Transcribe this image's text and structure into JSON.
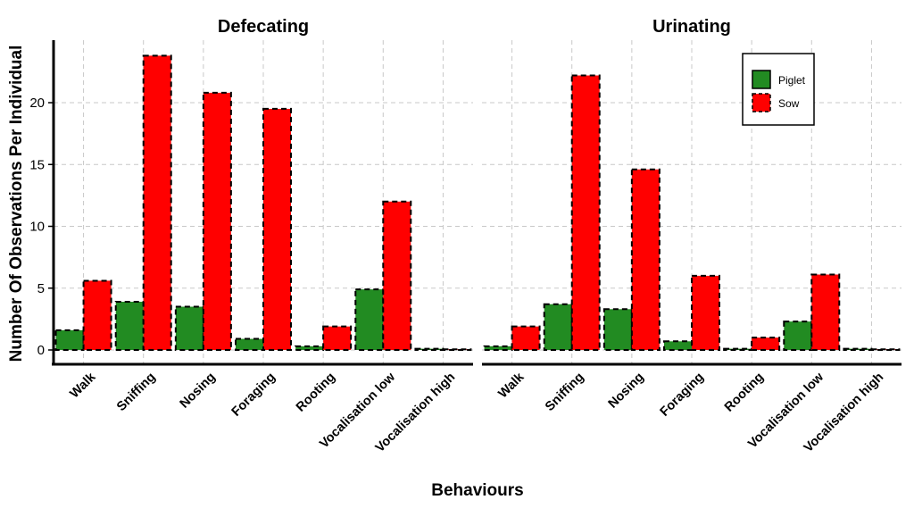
{
  "chart_data": {
    "type": "bar",
    "ylabel": "Number Of Observations Per Individual",
    "xlabel": "Behaviours",
    "ylim": [
      -1.2,
      25
    ],
    "yticks": [
      0,
      5,
      10,
      15,
      20
    ],
    "grid": true,
    "legend_position": "top-right",
    "categories": [
      "Walk",
      "Sniffing",
      "Nosing",
      "Foraging",
      "Rooting",
      "Vocalisation low",
      "Vocalisation high"
    ],
    "series_colors": {
      "Piglet": "#228B22",
      "Sow": "#FF0000"
    },
    "panels": [
      {
        "title": "Defecating",
        "series": [
          {
            "name": "Piglet",
            "values": [
              1.6,
              3.9,
              3.5,
              0.9,
              0.3,
              4.9,
              0.1
            ]
          },
          {
            "name": "Sow",
            "values": [
              5.6,
              23.8,
              20.8,
              19.5,
              1.9,
              12.0,
              0.05
            ]
          }
        ]
      },
      {
        "title": "Urinating",
        "series": [
          {
            "name": "Piglet",
            "values": [
              0.3,
              3.7,
              3.3,
              0.7,
              0.1,
              2.3,
              0.1
            ]
          },
          {
            "name": "Sow",
            "values": [
              1.9,
              22.2,
              14.6,
              6.0,
              1.0,
              6.1,
              0.05
            ]
          }
        ]
      }
    ],
    "legend": [
      "Piglet",
      "Sow"
    ]
  }
}
